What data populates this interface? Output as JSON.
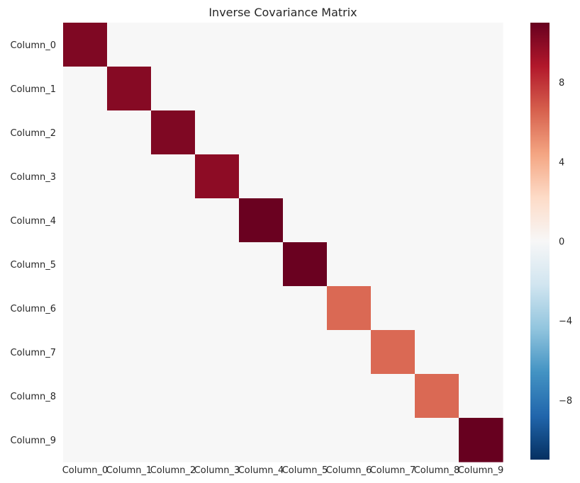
{
  "chart_data": {
    "type": "heatmap",
    "title": "Inverse Covariance Matrix",
    "xlabel": "",
    "ylabel": "",
    "x_categories": [
      "Column_0",
      "Column_1",
      "Column_2",
      "Column_3",
      "Column_4",
      "Column_5",
      "Column_6",
      "Column_7",
      "Column_8",
      "Column_9"
    ],
    "y_categories": [
      "Column_0",
      "Column_1",
      "Column_2",
      "Column_3",
      "Column_4",
      "Column_5",
      "Column_6",
      "Column_7",
      "Column_8",
      "Column_9"
    ],
    "matrix": [
      [
        10.3,
        0,
        0,
        0,
        0,
        0,
        0,
        0,
        0,
        0
      ],
      [
        0,
        10.1,
        0,
        0,
        0,
        0,
        0,
        0,
        0,
        0
      ],
      [
        0,
        0,
        10.3,
        0,
        0,
        0,
        0,
        0,
        0,
        0
      ],
      [
        0,
        0,
        0,
        9.9,
        0,
        0,
        0,
        0,
        0,
        0
      ],
      [
        0,
        0,
        0,
        0,
        10.9,
        0,
        0,
        0,
        0,
        0
      ],
      [
        0,
        0,
        0,
        0,
        0,
        10.9,
        0,
        0,
        0,
        0
      ],
      [
        0,
        0,
        0,
        0,
        0,
        0,
        6.3,
        0,
        0,
        0
      ],
      [
        0,
        0,
        0,
        0,
        0,
        0,
        0,
        6.3,
        0,
        0
      ],
      [
        0,
        0,
        0,
        0,
        0,
        0,
        0,
        0,
        6.3,
        0
      ],
      [
        0,
        0,
        0,
        0,
        0,
        0,
        0,
        0,
        0,
        11.0
      ]
    ],
    "colorbar": {
      "vmin": -11,
      "vmax": 11,
      "ticks": [
        -8,
        -4,
        0,
        4,
        8
      ],
      "tick_labels": [
        "−8",
        "−4",
        "0",
        "4",
        "8"
      ],
      "colormap": "RdBu_r"
    },
    "grid": false
  }
}
